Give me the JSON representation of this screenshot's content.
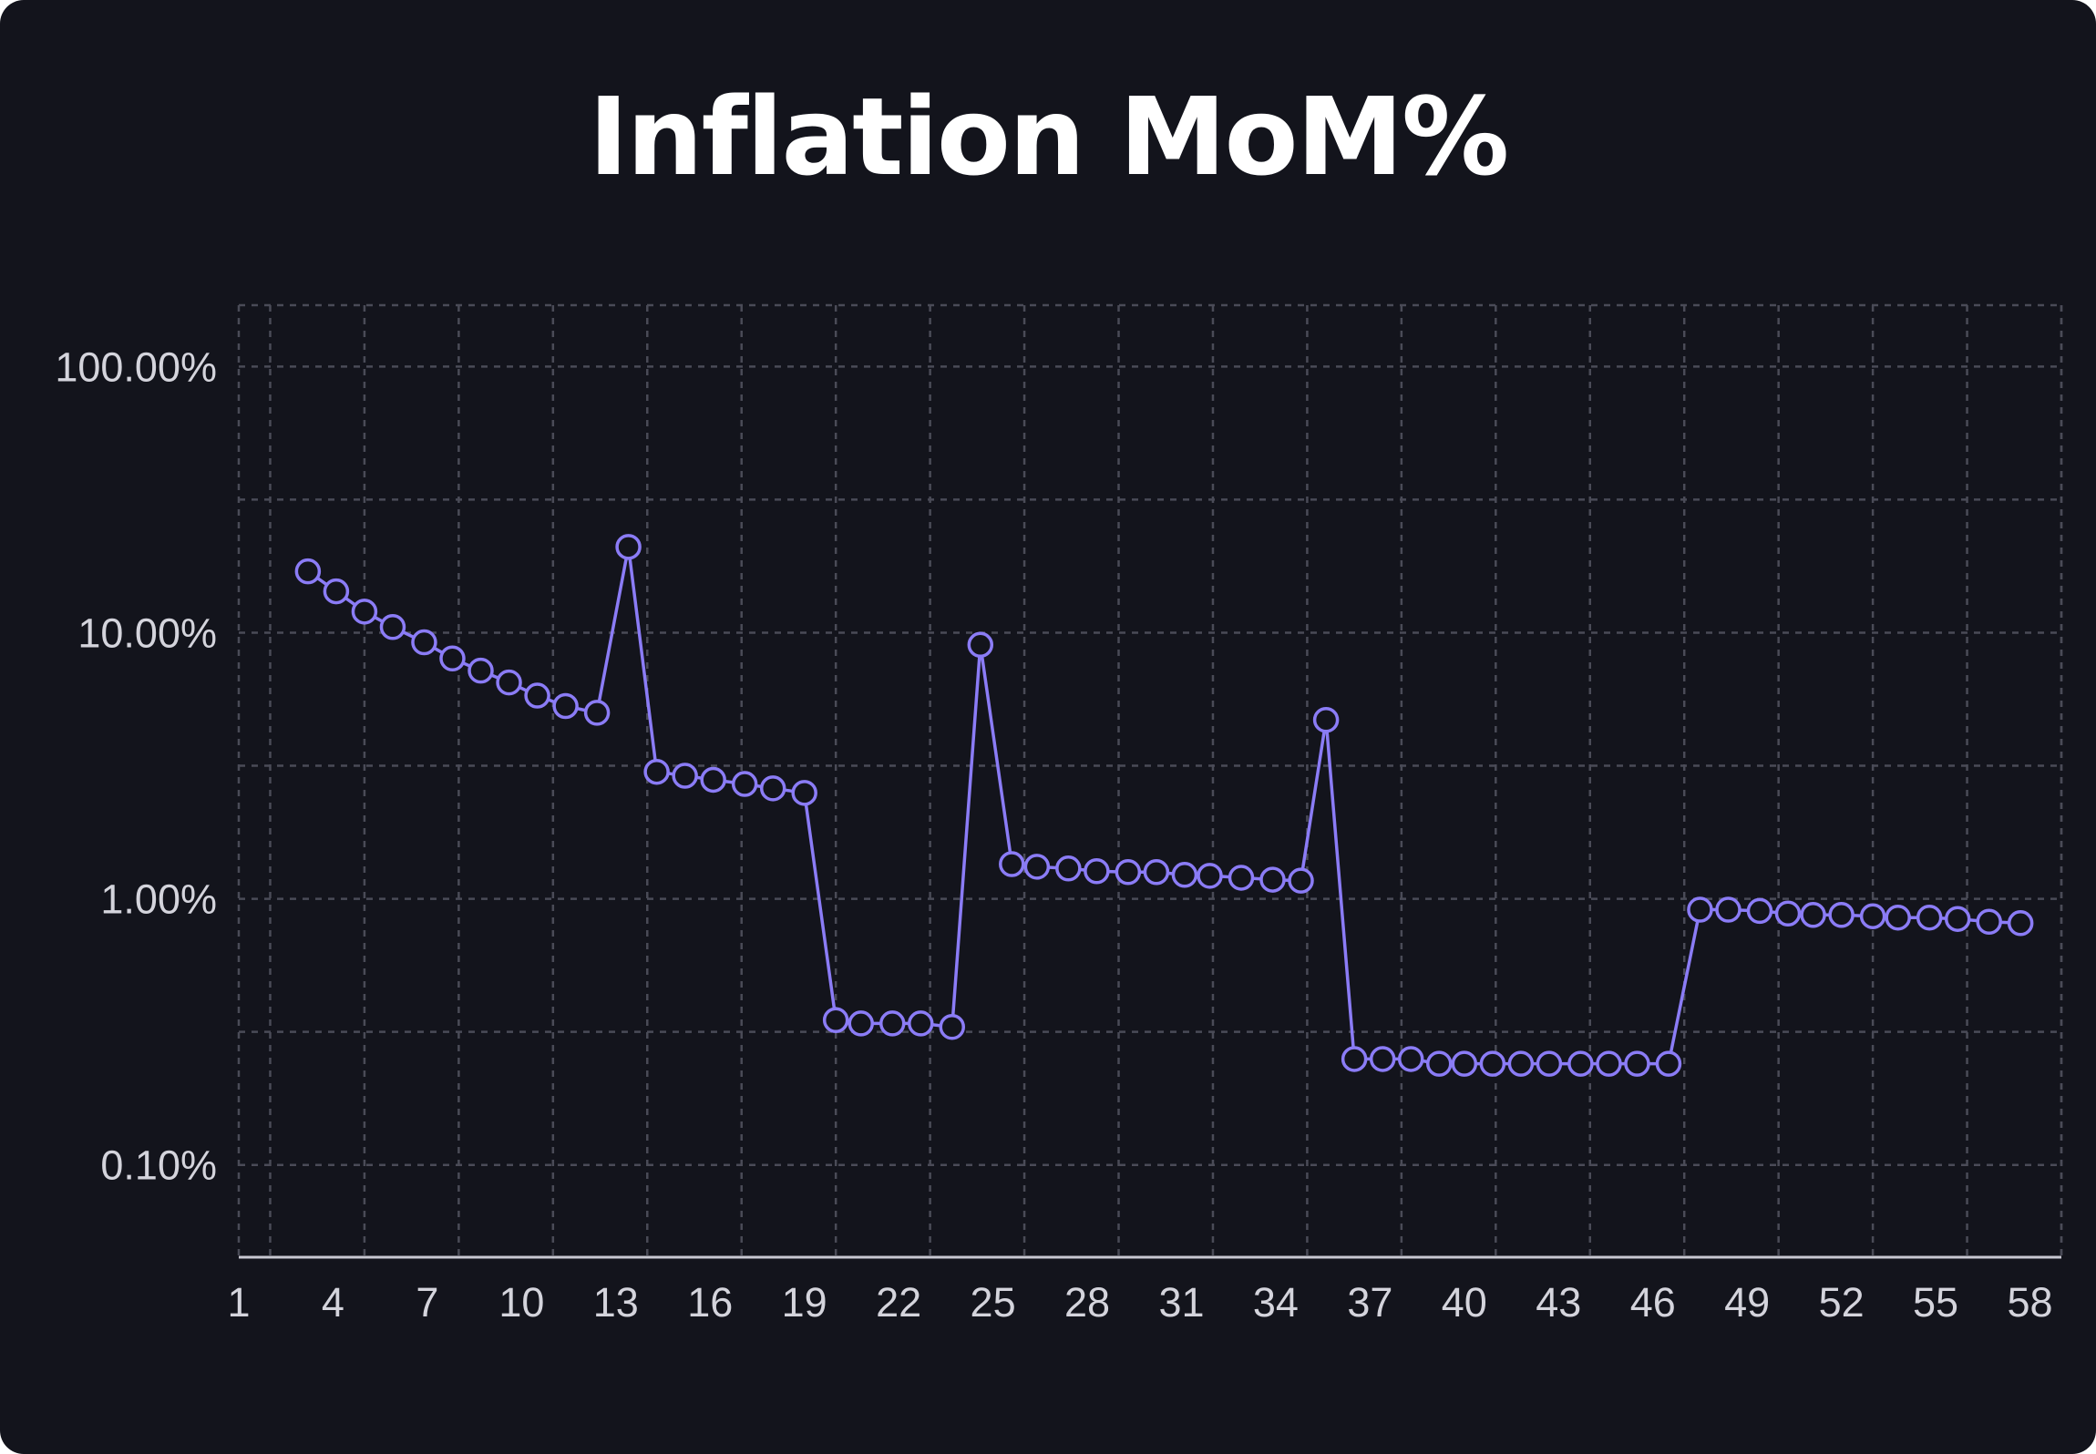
{
  "chart_data": {
    "type": "line",
    "title": "Inflation MoM%",
    "xlabel": "",
    "ylabel": "",
    "y_scale": "log",
    "ylim": [
      0.045,
      170
    ],
    "xlim": [
      1,
      59
    ],
    "grid": true,
    "legend": "none",
    "colors": {
      "background": "#13141c",
      "series": "#8b7cf6",
      "grid": "#4a4b57",
      "axis": "#c8c8d2",
      "text": "#d4d4dc"
    },
    "y_ticks": [
      {
        "value": 100,
        "label": "100.00%"
      },
      {
        "value": 10,
        "label": "10.00%"
      },
      {
        "value": 1,
        "label": "1.00%"
      },
      {
        "value": 0.1,
        "label": "0.10%"
      }
    ],
    "x_ticks": [
      1,
      4,
      7,
      10,
      13,
      16,
      19,
      22,
      25,
      28,
      31,
      34,
      37,
      40,
      43,
      46,
      49,
      52,
      55,
      58
    ],
    "series": [
      {
        "x": [
          3.2,
          4.1,
          5.0,
          5.9,
          6.9,
          7.8,
          8.7,
          9.6,
          10.5,
          11.4,
          12.4,
          13.4,
          14.3,
          15.2,
          16.1,
          17.1,
          18.0,
          19.0,
          20.0,
          20.8,
          21.8,
          22.7,
          23.7,
          24.6,
          25.6,
          26.4,
          27.4,
          28.3,
          29.3,
          30.2,
          31.1,
          31.9,
          32.9,
          33.9,
          34.8,
          35.6,
          36.5,
          37.4,
          38.3,
          39.2,
          40.0,
          40.9,
          41.8,
          42.7,
          43.7,
          44.6,
          45.5,
          46.5,
          47.5,
          48.4,
          49.4,
          50.3,
          51.1,
          52.0,
          53.0,
          53.8,
          54.8,
          55.7,
          56.7,
          57.7
        ],
        "values": [
          17.0,
          14.3,
          12.0,
          10.5,
          9.2,
          8.0,
          7.2,
          6.5,
          5.8,
          5.3,
          5.0,
          21.0,
          3.0,
          2.9,
          2.8,
          2.7,
          2.6,
          2.5,
          0.35,
          0.34,
          0.34,
          0.34,
          0.33,
          9.0,
          1.35,
          1.32,
          1.3,
          1.27,
          1.26,
          1.26,
          1.23,
          1.22,
          1.2,
          1.18,
          1.17,
          4.7,
          0.25,
          0.25,
          0.25,
          0.24,
          0.24,
          0.24,
          0.24,
          0.24,
          0.24,
          0.24,
          0.24,
          0.24,
          0.91,
          0.91,
          0.9,
          0.88,
          0.87,
          0.87,
          0.86,
          0.85,
          0.85,
          0.84,
          0.82,
          0.81
        ]
      }
    ]
  }
}
